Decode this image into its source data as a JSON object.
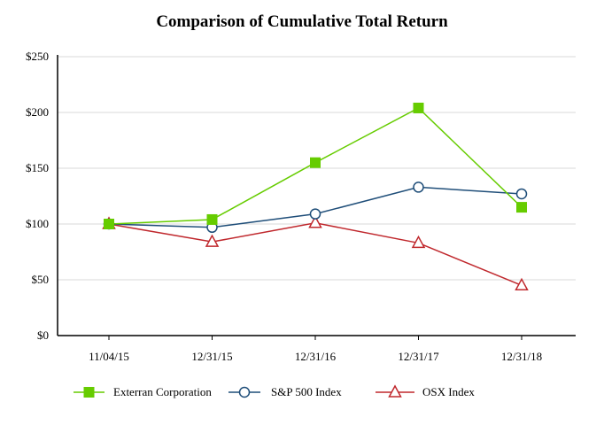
{
  "chart_data": {
    "type": "line",
    "title": "Comparison of Cumulative Total Return",
    "xlabel": "",
    "ylabel": "",
    "categories": [
      "11/04/15",
      "12/31/15",
      "12/31/16",
      "12/31/17",
      "12/31/18"
    ],
    "ylim": [
      0,
      250
    ],
    "yticks": [
      0,
      50,
      100,
      150,
      200,
      250
    ],
    "ytick_labels": [
      "$0",
      "$50",
      "$100",
      "$150",
      "$200",
      "$250"
    ],
    "grid": true,
    "legend_position": "bottom",
    "series": [
      {
        "name": "Exterran Corporation",
        "values": [
          100,
          104,
          155,
          204,
          115
        ],
        "color": "#66cc00",
        "marker": "square"
      },
      {
        "name": "S&P 500 Index",
        "values": [
          100,
          97,
          109,
          133,
          127
        ],
        "color": "#1f4e79",
        "marker": "circle"
      },
      {
        "name": "OSX Index",
        "values": [
          100,
          84,
          101,
          83,
          45
        ],
        "color": "#c0282d",
        "marker": "triangle"
      }
    ]
  }
}
